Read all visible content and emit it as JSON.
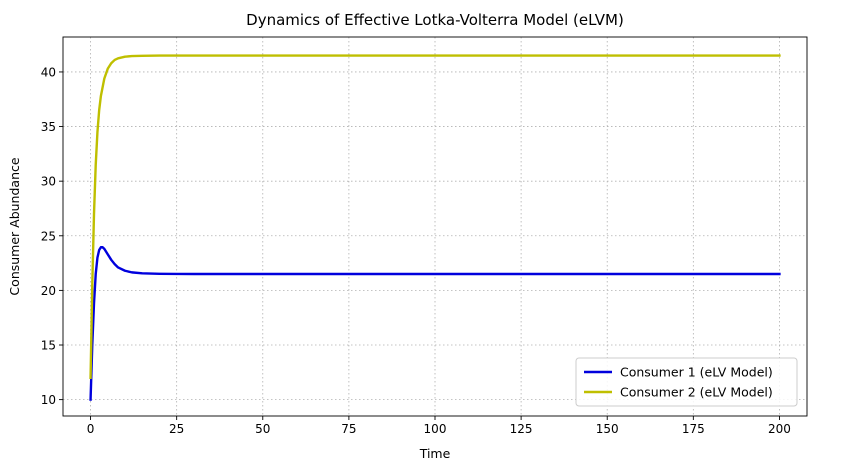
{
  "chart_data": {
    "type": "line",
    "title": "Dynamics of Effective Lotka-Volterra Model (eLVM)",
    "xlabel": "Time",
    "ylabel": "Consumer Abundance",
    "xlim": [
      -8,
      208
    ],
    "ylim": [
      8.5,
      43.2
    ],
    "xticks": [
      0,
      25,
      50,
      75,
      100,
      125,
      150,
      175,
      200
    ],
    "yticks": [
      10,
      15,
      20,
      25,
      30,
      35,
      40
    ],
    "grid": true,
    "legend_position": "lower-right",
    "series": [
      {
        "name": "Consumer 1 (eLV Model)",
        "color": "#0000dd",
        "x": [
          0,
          0.5,
          1,
          1.5,
          2,
          2.5,
          3,
          3.5,
          4,
          5,
          6,
          7,
          8,
          10,
          12,
          15,
          20,
          25,
          30,
          50,
          100,
          150,
          200
        ],
        "y": [
          10,
          15.0,
          18.8,
          21.5,
          23.0,
          23.7,
          23.95,
          23.95,
          23.8,
          23.3,
          22.8,
          22.4,
          22.1,
          21.8,
          21.65,
          21.56,
          21.52,
          21.51,
          21.5,
          21.5,
          21.5,
          21.5,
          21.5
        ]
      },
      {
        "name": "Consumer 2 (eLV Model)",
        "color": "#bfbf00",
        "x": [
          0,
          0.5,
          1,
          1.5,
          2,
          2.5,
          3,
          4,
          5,
          6,
          7,
          8,
          10,
          12,
          15,
          20,
          25,
          30,
          50,
          100,
          150,
          200
        ],
        "y": [
          12,
          20.5,
          27.0,
          31.5,
          34.5,
          36.5,
          37.8,
          39.4,
          40.3,
          40.8,
          41.1,
          41.25,
          41.4,
          41.45,
          41.48,
          41.5,
          41.5,
          41.5,
          41.5,
          41.5,
          41.5,
          41.5
        ]
      }
    ]
  }
}
